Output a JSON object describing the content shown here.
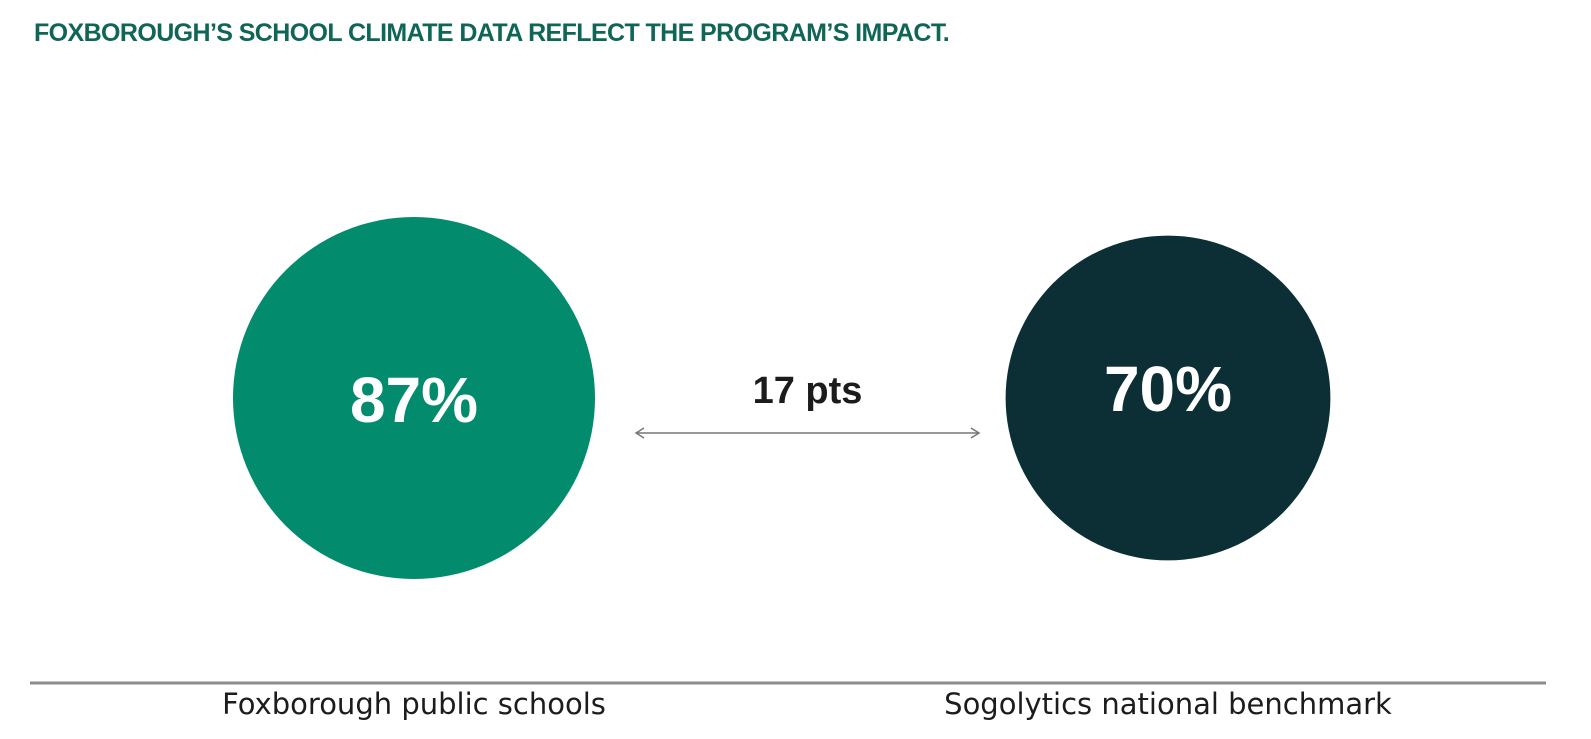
{
  "chart_data": {
    "type": "bubble-comparison",
    "title": "FOXBOROUGH’S SCHOOL CLIMATE DATA REFLECT THE PROGRAM’S IMPACT.",
    "categories": [
      "Foxborough public schools",
      "Sogolytics national benchmark"
    ],
    "values": [
      87,
      70
    ],
    "value_labels": [
      "87%",
      "70%"
    ],
    "unit": "%",
    "difference_label": "17 pts",
    "colors": [
      "#028b6c",
      "#0b2f34"
    ]
  },
  "colors": {
    "title": "#0f6656",
    "baseline": "#8c8c8c",
    "arrow": "#777777"
  }
}
